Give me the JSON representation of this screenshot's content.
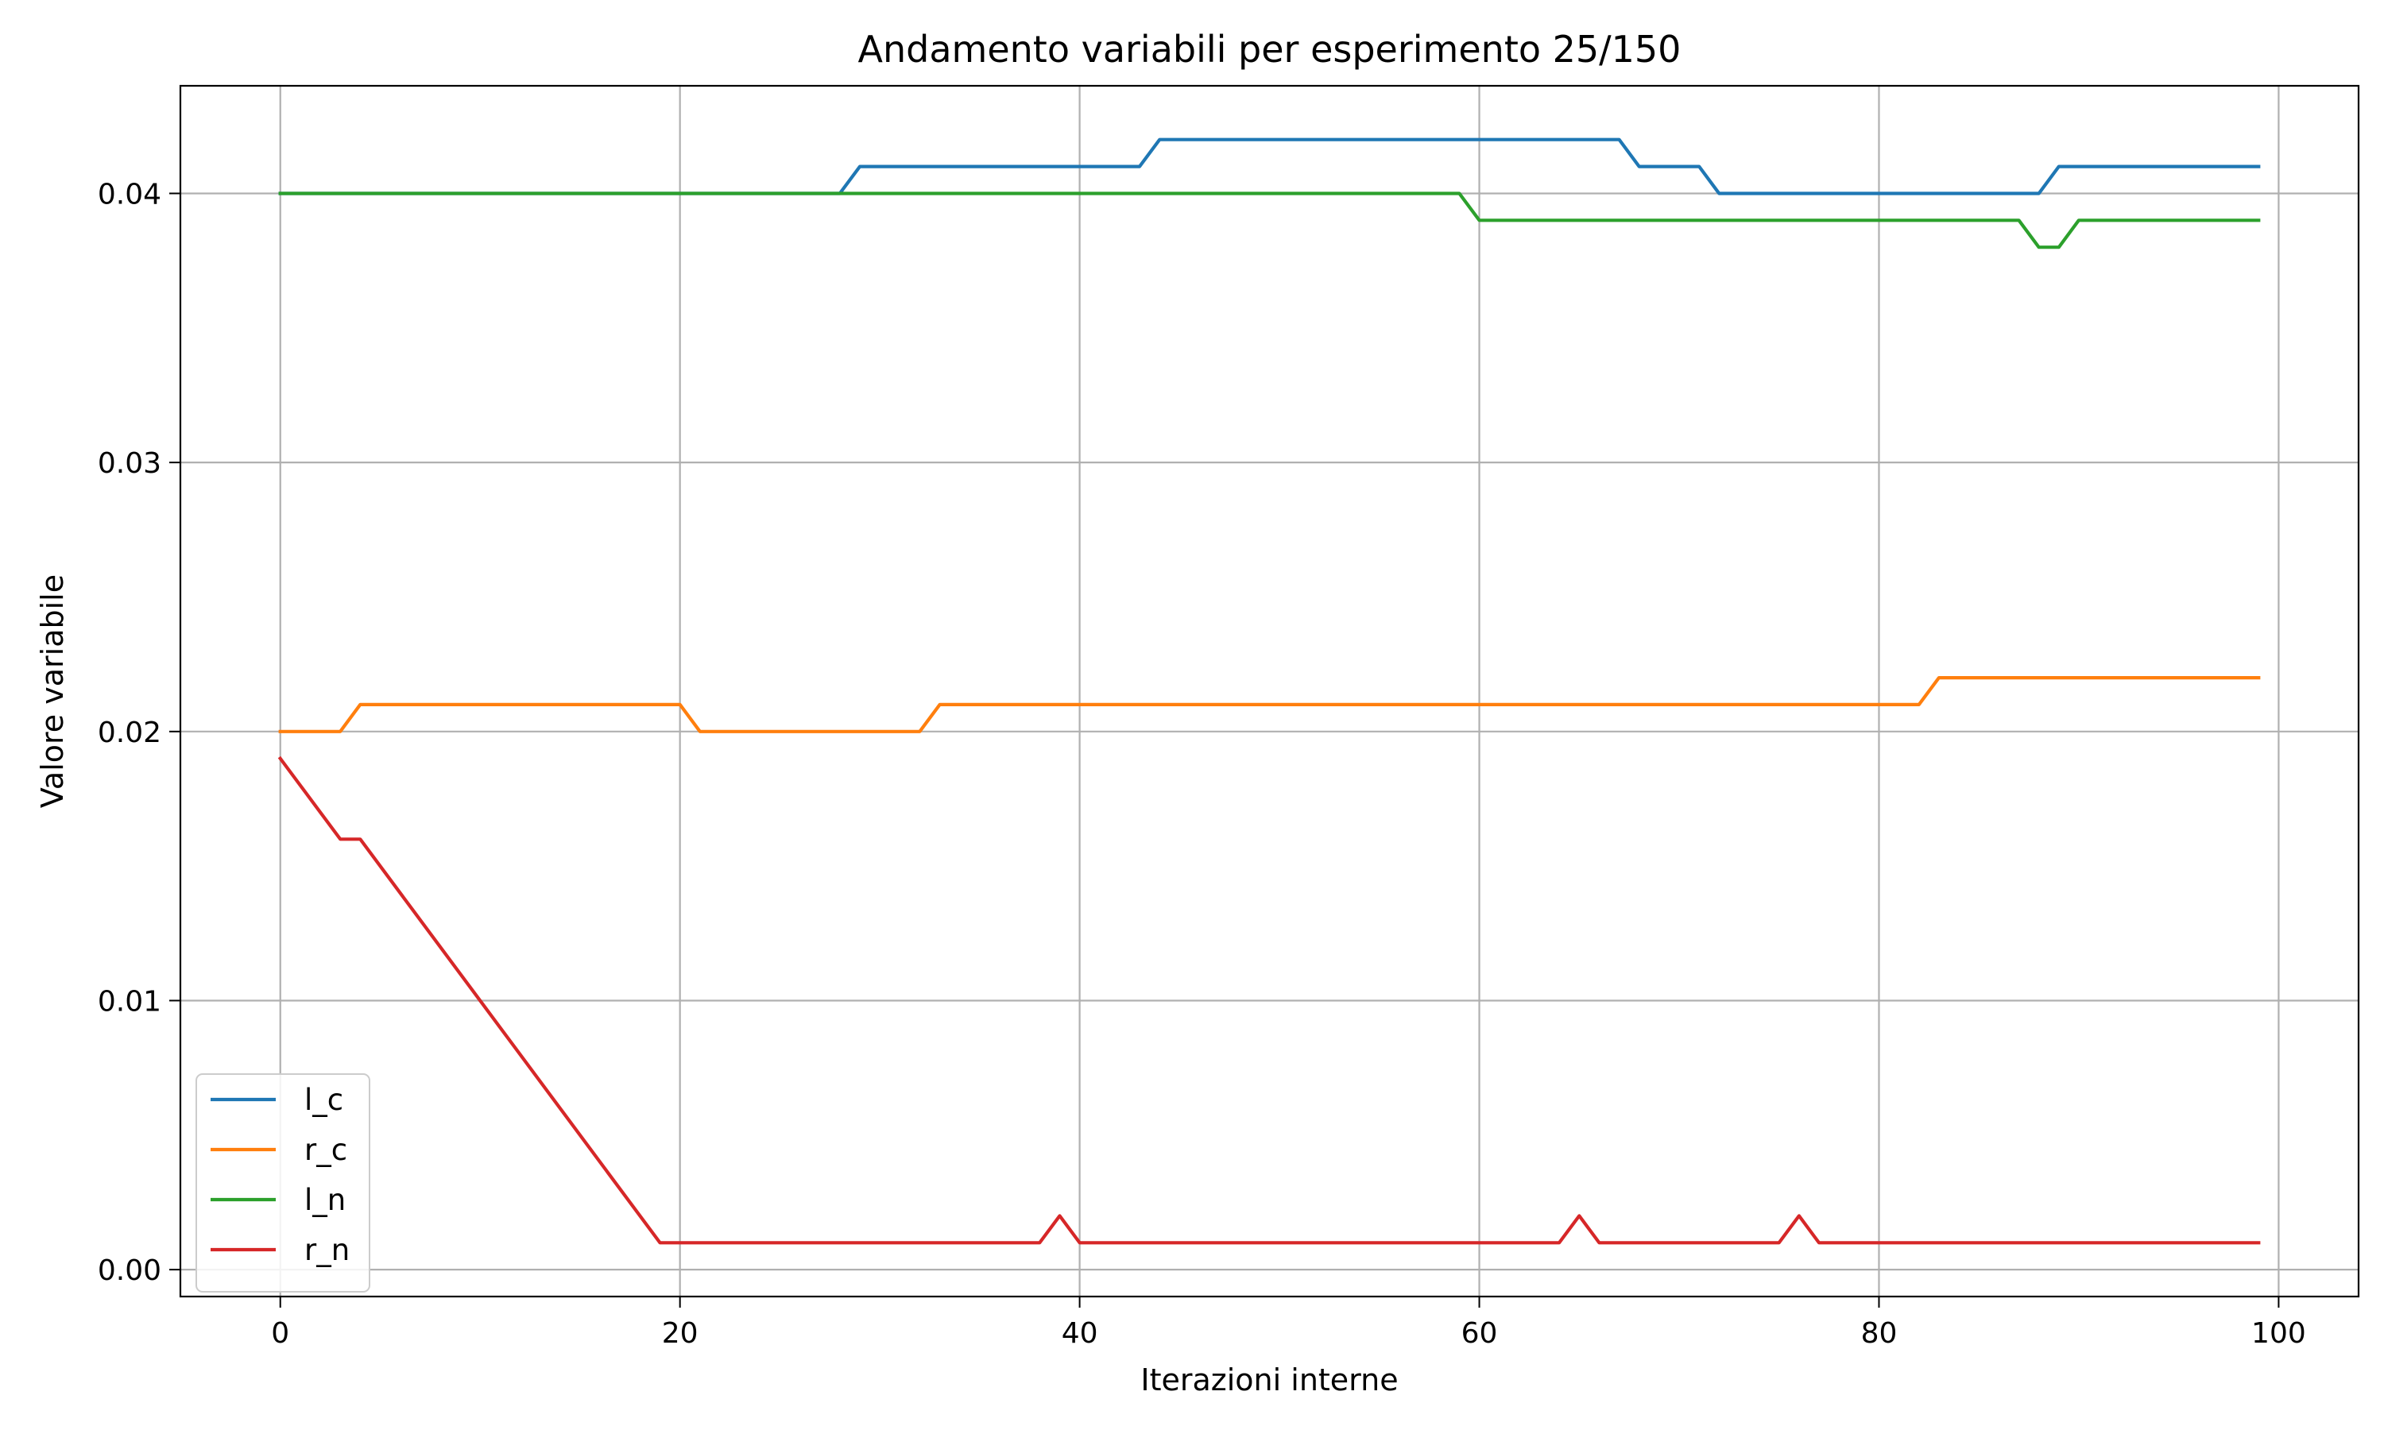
{
  "chart_data": {
    "type": "line",
    "title": "Andamento variabili per esperimento 25/150",
    "xlabel": "Iterazioni interne",
    "ylabel": "Valore variabile",
    "xlim": [
      -5,
      104
    ],
    "ylim": [
      -0.001,
      0.044
    ],
    "xticks": [
      0,
      20,
      40,
      60,
      80,
      100
    ],
    "xtick_labels": [
      "0",
      "20",
      "40",
      "60",
      "80",
      "100"
    ],
    "yticks": [
      0.0,
      0.01,
      0.02,
      0.03,
      0.04
    ],
    "ytick_labels": [
      "0.00",
      "0.01",
      "0.02",
      "0.03",
      "0.04"
    ],
    "grid": true,
    "legend_position": "lower-left",
    "series": [
      {
        "name": "l_c",
        "color": "#1f77b4",
        "points": [
          [
            0,
            0.04
          ],
          [
            28,
            0.04
          ],
          [
            29,
            0.041
          ],
          [
            43,
            0.041
          ],
          [
            44,
            0.042
          ],
          [
            67,
            0.042
          ],
          [
            68,
            0.041
          ],
          [
            71,
            0.041
          ],
          [
            72,
            0.04
          ],
          [
            88,
            0.04
          ],
          [
            89,
            0.041
          ],
          [
            99,
            0.041
          ]
        ]
      },
      {
        "name": "r_c",
        "color": "#ff7f0e",
        "points": [
          [
            0,
            0.02
          ],
          [
            3,
            0.02
          ],
          [
            4,
            0.021
          ],
          [
            20,
            0.021
          ],
          [
            21,
            0.02
          ],
          [
            32,
            0.02
          ],
          [
            33,
            0.021
          ],
          [
            82,
            0.021
          ],
          [
            83,
            0.022
          ],
          [
            99,
            0.022
          ]
        ]
      },
      {
        "name": "l_n",
        "color": "#2ca02c",
        "points": [
          [
            0,
            0.04
          ],
          [
            59,
            0.04
          ],
          [
            60,
            0.039
          ],
          [
            87,
            0.039
          ],
          [
            88,
            0.038
          ],
          [
            89,
            0.038
          ],
          [
            90,
            0.039
          ],
          [
            99,
            0.039
          ]
        ]
      },
      {
        "name": "r_n",
        "color": "#d62728",
        "points": [
          [
            0,
            0.019
          ],
          [
            3,
            0.016
          ],
          [
            4,
            0.016
          ],
          [
            19,
            0.001
          ],
          [
            38,
            0.001
          ],
          [
            39,
            0.002
          ],
          [
            40,
            0.001
          ],
          [
            64,
            0.001
          ],
          [
            65,
            0.002
          ],
          [
            66,
            0.001
          ],
          [
            75,
            0.001
          ],
          [
            76,
            0.002
          ],
          [
            77,
            0.001
          ],
          [
            99,
            0.001
          ]
        ]
      }
    ]
  }
}
